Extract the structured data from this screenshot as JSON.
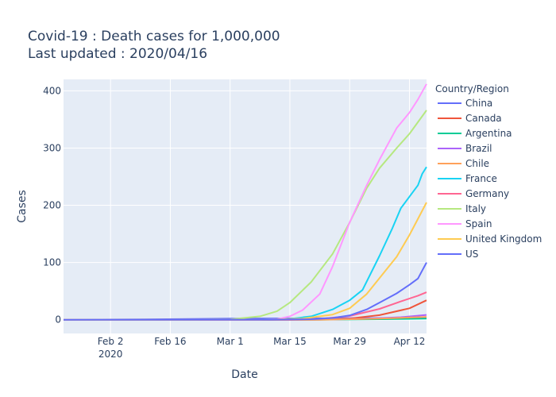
{
  "colors": {
    "plot_bg": "#e5ecf6",
    "grid": "#ffffff",
    "text": "#2a3f5f"
  },
  "chart_data": {
    "type": "line",
    "title": "Covid-19 : Death cases for 1,000,000",
    "subtitle": "Last updated : 2020/04/16",
    "xlabel": "Date",
    "ylabel": "Cases",
    "grid": true,
    "legend_title": "Country/Region",
    "legend_placement": "right",
    "x_domain": [
      "2020-01-22",
      "2020-04-16"
    ],
    "ylim": [
      -24,
      420
    ],
    "y_ticks": [
      0,
      100,
      200,
      300,
      400
    ],
    "x_ticks": [
      {
        "date": "2020-02-02",
        "label": "Feb 2",
        "sublabel": "2020"
      },
      {
        "date": "2020-02-16",
        "label": "Feb 16",
        "sublabel": ""
      },
      {
        "date": "2020-03-01",
        "label": "Mar 1",
        "sublabel": ""
      },
      {
        "date": "2020-03-15",
        "label": "Mar 15",
        "sublabel": ""
      },
      {
        "date": "2020-03-29",
        "label": "Mar 29",
        "sublabel": ""
      },
      {
        "date": "2020-04-12",
        "label": "Apr 12",
        "sublabel": ""
      }
    ],
    "series": [
      {
        "name": "China",
        "color": "#636efa",
        "points": [
          [
            "2020-01-22",
            0
          ],
          [
            "2020-02-10",
            0.7
          ],
          [
            "2020-03-01",
            2.0
          ],
          [
            "2020-04-16",
            3.2
          ]
        ]
      },
      {
        "name": "Canada",
        "color": "#ef553b",
        "points": [
          [
            "2020-01-22",
            0
          ],
          [
            "2020-03-20",
            0.3
          ],
          [
            "2020-03-29",
            2
          ],
          [
            "2020-04-05",
            8
          ],
          [
            "2020-04-12",
            20
          ],
          [
            "2020-04-16",
            34
          ]
        ]
      },
      {
        "name": "Argentina",
        "color": "#00cc96",
        "points": [
          [
            "2020-01-22",
            0
          ],
          [
            "2020-03-20",
            0
          ],
          [
            "2020-04-05",
            1
          ],
          [
            "2020-04-16",
            2
          ]
        ]
      },
      {
        "name": "Brazil",
        "color": "#ab63fa",
        "points": [
          [
            "2020-01-22",
            0
          ],
          [
            "2020-03-20",
            0
          ],
          [
            "2020-04-01",
            1.5
          ],
          [
            "2020-04-10",
            4.5
          ],
          [
            "2020-04-16",
            8.5
          ]
        ]
      },
      {
        "name": "Chile",
        "color": "#ffa15a",
        "points": [
          [
            "2020-01-22",
            0
          ],
          [
            "2020-03-22",
            0
          ],
          [
            "2020-04-05",
            2
          ],
          [
            "2020-04-16",
            5
          ]
        ]
      },
      {
        "name": "France",
        "color": "#19d3f3",
        "points": [
          [
            "2020-01-22",
            0
          ],
          [
            "2020-03-08",
            0.3
          ],
          [
            "2020-03-15",
            1.5
          ],
          [
            "2020-03-20",
            6
          ],
          [
            "2020-03-25",
            18
          ],
          [
            "2020-03-29",
            34
          ],
          [
            "2020-04-01",
            52
          ],
          [
            "2020-04-05",
            112
          ],
          [
            "2020-04-08",
            160
          ],
          [
            "2020-04-10",
            195
          ],
          [
            "2020-04-12",
            215
          ],
          [
            "2020-04-14",
            235
          ],
          [
            "2020-04-15",
            255
          ],
          [
            "2020-04-16",
            267
          ]
        ]
      },
      {
        "name": "Germany",
        "color": "#ff6692",
        "points": [
          [
            "2020-01-22",
            0
          ],
          [
            "2020-03-15",
            0.2
          ],
          [
            "2020-03-22",
            1.5
          ],
          [
            "2020-03-29",
            6.5
          ],
          [
            "2020-04-05",
            19
          ],
          [
            "2020-04-10",
            32
          ],
          [
            "2020-04-14",
            42
          ],
          [
            "2020-04-16",
            48
          ]
        ]
      },
      {
        "name": "Italy",
        "color": "#b6e880",
        "points": [
          [
            "2020-01-22",
            0
          ],
          [
            "2020-02-22",
            0.1
          ],
          [
            "2020-03-01",
            0.5
          ],
          [
            "2020-03-08",
            6
          ],
          [
            "2020-03-12",
            15
          ],
          [
            "2020-03-15",
            30
          ],
          [
            "2020-03-20",
            66
          ],
          [
            "2020-03-25",
            115
          ],
          [
            "2020-03-29",
            170
          ],
          [
            "2020-04-02",
            230
          ],
          [
            "2020-04-05",
            265
          ],
          [
            "2020-04-09",
            300
          ],
          [
            "2020-04-12",
            325
          ],
          [
            "2020-04-16",
            366
          ]
        ]
      },
      {
        "name": "Spain",
        "color": "#ff97ff",
        "points": [
          [
            "2020-01-22",
            0
          ],
          [
            "2020-03-08",
            0.2
          ],
          [
            "2020-03-12",
            1
          ],
          [
            "2020-03-15",
            6
          ],
          [
            "2020-03-18",
            17
          ],
          [
            "2020-03-22",
            45
          ],
          [
            "2020-03-25",
            93
          ],
          [
            "2020-03-29",
            170
          ],
          [
            "2020-04-02",
            235
          ],
          [
            "2020-04-05",
            280
          ],
          [
            "2020-04-09",
            335
          ],
          [
            "2020-04-12",
            362
          ],
          [
            "2020-04-14,",
            385
          ],
          [
            "2020-04-16",
            412
          ]
        ]
      },
      {
        "name": "United Kingdom",
        "color": "#fecb52",
        "points": [
          [
            "2020-01-22",
            0
          ],
          [
            "2020-03-10",
            0.1
          ],
          [
            "2020-03-18",
            2
          ],
          [
            "2020-03-25",
            9
          ],
          [
            "2020-03-29",
            20
          ],
          [
            "2020-04-02",
            45
          ],
          [
            "2020-04-05",
            73
          ],
          [
            "2020-04-09",
            110
          ],
          [
            "2020-04-12",
            148
          ],
          [
            "2020-04-16",
            205
          ]
        ]
      },
      {
        "name": "US",
        "color": "#636efa",
        "points": [
          [
            "2020-01-22",
            0
          ],
          [
            "2020-03-10",
            0.1
          ],
          [
            "2020-03-20",
            1
          ],
          [
            "2020-03-25",
            3
          ],
          [
            "2020-03-29",
            7.5
          ],
          [
            "2020-04-02",
            18
          ],
          [
            "2020-04-05",
            30
          ],
          [
            "2020-04-09",
            46
          ],
          [
            "2020-04-12",
            61
          ],
          [
            "2020-04-14",
            72
          ],
          [
            "2020-04-15",
            86
          ],
          [
            "2020-04-16",
            100
          ]
        ]
      }
    ]
  }
}
